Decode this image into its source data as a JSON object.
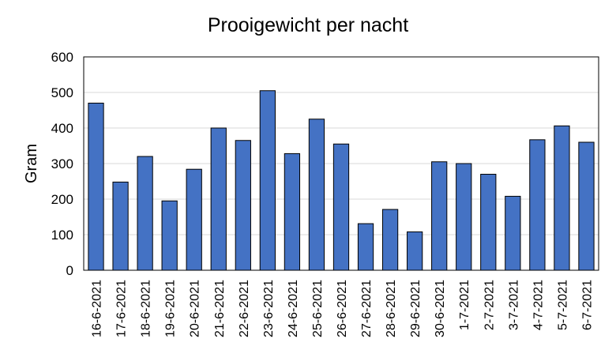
{
  "chart_data": {
    "type": "bar",
    "title": "Prooigewicht per nacht",
    "xlabel": "",
    "ylabel": "Gram",
    "ylim": [
      0,
      600
    ],
    "yticks": [
      0,
      100,
      200,
      300,
      400,
      500,
      600
    ],
    "grid": true,
    "legend": "none",
    "categories": [
      "16-6-2021",
      "17-6-2021",
      "18-6-2021",
      "19-6-2021",
      "20-6-2021",
      "21-6-2021",
      "22-6-2021",
      "23-6-2021",
      "24-6-2021",
      "25-6-2021",
      "26-6-2021",
      "27-6-2021",
      "28-6-2021",
      "29-6-2021",
      "30-6-2021",
      "1-7-2021",
      "2-7-2021",
      "3-7-2021",
      "4-7-2021",
      "5-7-2021",
      "6-7-2021"
    ],
    "values": [
      470,
      248,
      320,
      195,
      284,
      400,
      365,
      505,
      328,
      425,
      355,
      131,
      171,
      108,
      305,
      300,
      270,
      208,
      367,
      406,
      360
    ],
    "bar_color": "#4472C4",
    "bar_edge_color": "#000000",
    "grid_color": "#D9D9D9"
  }
}
